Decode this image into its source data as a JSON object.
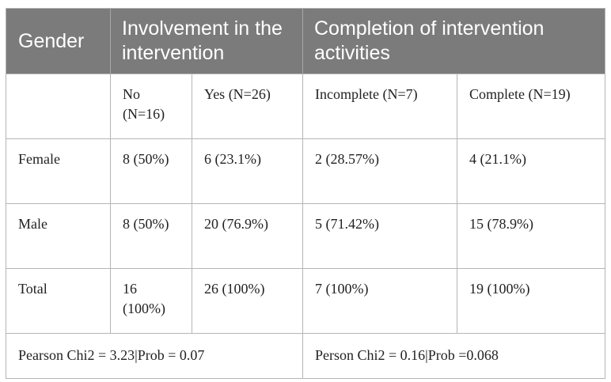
{
  "table": {
    "headers": {
      "gender": "Gender",
      "involvement": "Involvement in the intervention",
      "completion": "Completion of intervention activities"
    },
    "subheaders": {
      "no": "No (N=16)",
      "yes": "Yes (N=26)",
      "incomplete": "Incomplete (N=7)",
      "complete": "Complete (N=19)"
    },
    "rows": [
      {
        "label": "Female",
        "no": "8 (50%)",
        "yes": "6 (23.1%)",
        "incomplete": "2 (28.57%)",
        "complete": "4 (21.1%)"
      },
      {
        "label": "Male",
        "no": "8 (50%)",
        "yes": "20 (76.9%)",
        "incomplete": "5 (71.42%)",
        "complete": "15 (78.9%)"
      },
      {
        "label": "Total",
        "no": "16 (100%)",
        "yes": "26 (100%)",
        "incomplete": "7 (100%)",
        "complete": "19 (100%)"
      }
    ],
    "footer": {
      "involvement_stat": "Pearson Chi2 = 3.23|Prob = 0.07",
      "completion_stat": "Person Chi2 = 0.16|Prob =0.068"
    }
  }
}
